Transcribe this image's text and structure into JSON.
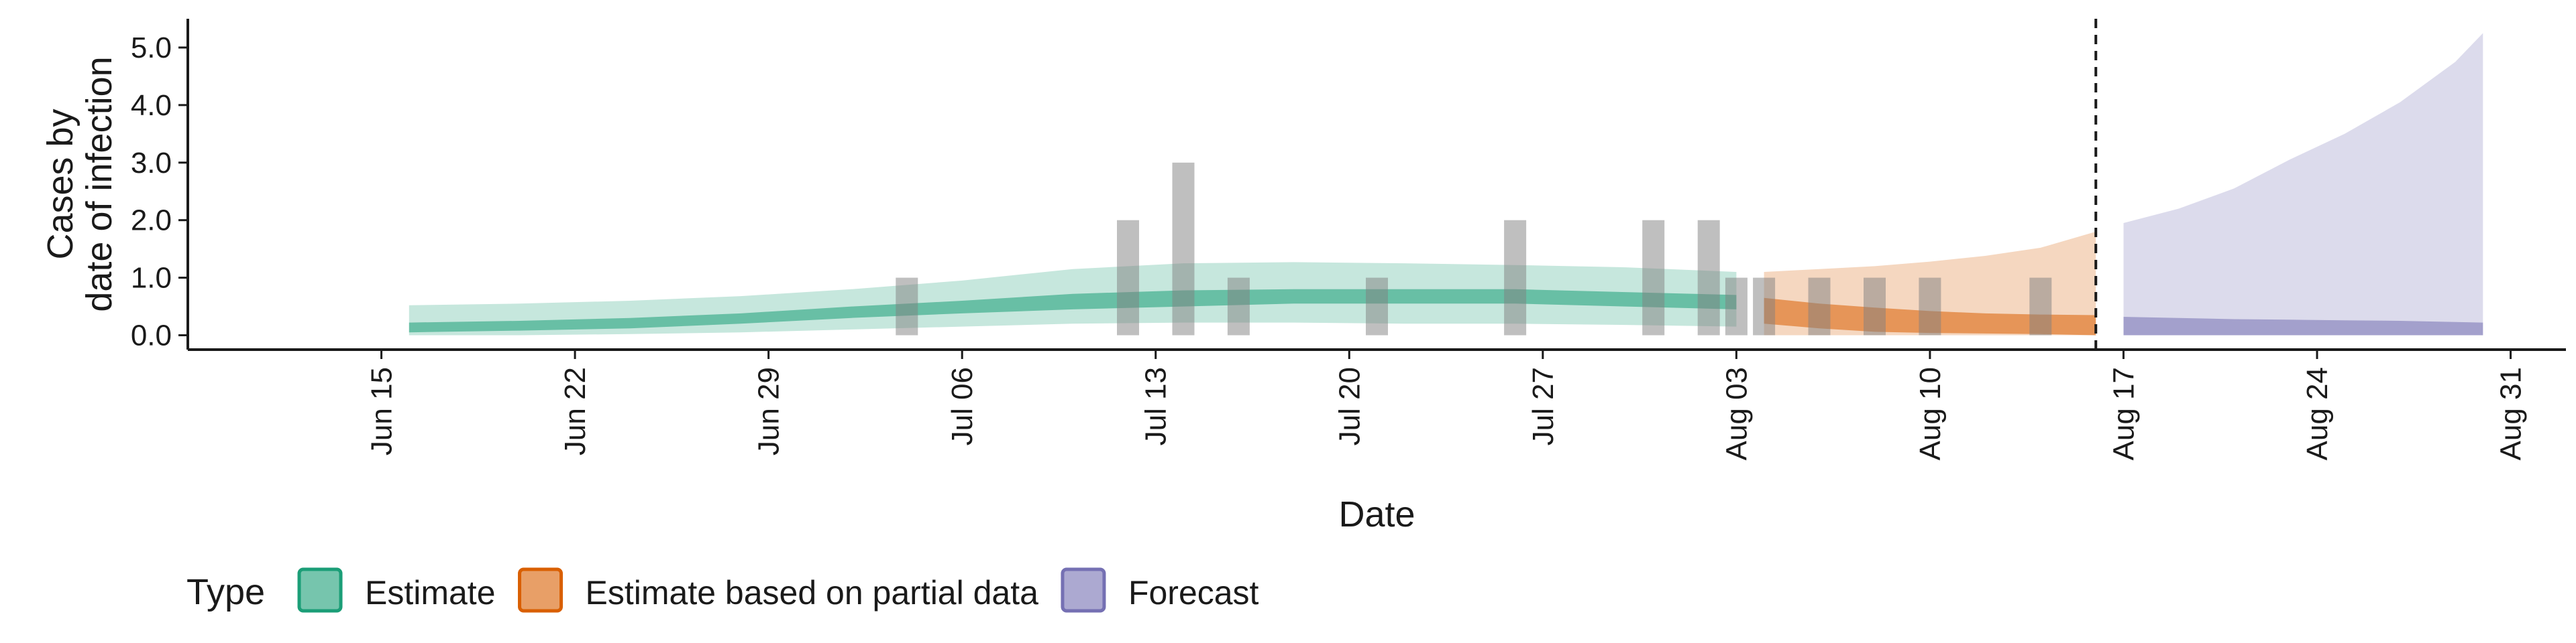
{
  "chart_data": {
    "type": "area",
    "xlabel": "Date",
    "ylabel_lines": [
      "Cases by",
      "date of infection"
    ],
    "ylim": [
      -0.25,
      5.5
    ],
    "y_ticks": [
      0.0,
      1.0,
      2.0,
      3.0,
      4.0,
      5.0
    ],
    "y_tick_labels": [
      "0.0",
      "1.0",
      "2.0",
      "3.0",
      "4.0",
      "5.0"
    ],
    "x_range": [
      "2020-06-08",
      "2020-09-02"
    ],
    "x_ticks": [
      "2020-06-15",
      "2020-06-22",
      "2020-06-29",
      "2020-07-06",
      "2020-07-13",
      "2020-07-20",
      "2020-07-27",
      "2020-08-03",
      "2020-08-10",
      "2020-08-17",
      "2020-08-24",
      "2020-08-31"
    ],
    "x_tick_labels": [
      "Jun 15",
      "Jun 22",
      "Jun 29",
      "Jul 06",
      "Jul 13",
      "Jul 20",
      "Jul 27",
      "Aug 03",
      "Aug 10",
      "Aug 17",
      "Aug 24",
      "Aug 31"
    ],
    "vline": "2020-08-16",
    "legend": {
      "title": "Type",
      "position": "bottom",
      "items": [
        {
          "label": "Estimate",
          "color": "#1b9e77"
        },
        {
          "label": "Estimate based on partial data",
          "color": "#d95f02"
        },
        {
          "label": "Forecast",
          "color": "#7570b3"
        }
      ]
    },
    "bars": {
      "color": "#7f7f7f",
      "dates": [
        "2020-07-04",
        "2020-07-12",
        "2020-07-14",
        "2020-07-16",
        "2020-07-21",
        "2020-07-26",
        "2020-07-31",
        "2020-08-02",
        "2020-08-03",
        "2020-08-04",
        "2020-08-06",
        "2020-08-08",
        "2020-08-10",
        "2020-08-14"
      ],
      "values": [
        1,
        2,
        3,
        1,
        1,
        2,
        2,
        2,
        1,
        1,
        1,
        1,
        1,
        1
      ]
    },
    "series": [
      {
        "type_label": "Estimate",
        "color": "#1b9e77",
        "dates": [
          "2020-06-16",
          "2020-06-20",
          "2020-06-24",
          "2020-06-28",
          "2020-07-02",
          "2020-07-06",
          "2020-07-10",
          "2020-07-14",
          "2020-07-18",
          "2020-07-22",
          "2020-07-26",
          "2020-07-30",
          "2020-08-03"
        ],
        "lower90": [
          0.0,
          0.0,
          0.02,
          0.05,
          0.1,
          0.15,
          0.2,
          0.22,
          0.22,
          0.2,
          0.2,
          0.18,
          0.15
        ],
        "upper90": [
          0.52,
          0.55,
          0.6,
          0.68,
          0.8,
          0.95,
          1.15,
          1.25,
          1.27,
          1.25,
          1.22,
          1.18,
          1.1
        ],
        "lower50": [
          0.05,
          0.08,
          0.12,
          0.2,
          0.3,
          0.38,
          0.45,
          0.5,
          0.55,
          0.55,
          0.55,
          0.5,
          0.45
        ],
        "upper50": [
          0.22,
          0.25,
          0.3,
          0.38,
          0.5,
          0.6,
          0.72,
          0.78,
          0.8,
          0.8,
          0.8,
          0.75,
          0.7
        ]
      },
      {
        "type_label": "Estimate based on partial data",
        "color": "#d95f02",
        "dates": [
          "2020-08-04",
          "2020-08-06",
          "2020-08-08",
          "2020-08-10",
          "2020-08-12",
          "2020-08-14",
          "2020-08-16"
        ],
        "lower90": [
          0.0,
          0.0,
          0.0,
          0.0,
          0.0,
          0.0,
          0.0
        ],
        "upper90": [
          1.1,
          1.15,
          1.2,
          1.28,
          1.38,
          1.52,
          1.8
        ],
        "lower50": [
          0.2,
          0.12,
          0.06,
          0.04,
          0.03,
          0.02,
          0.0
        ],
        "upper50": [
          0.65,
          0.55,
          0.48,
          0.42,
          0.38,
          0.36,
          0.35
        ]
      },
      {
        "type_label": "Forecast",
        "color": "#7570b3",
        "dates": [
          "2020-08-17",
          "2020-08-19",
          "2020-08-21",
          "2020-08-23",
          "2020-08-25",
          "2020-08-27",
          "2020-08-29",
          "2020-08-30"
        ],
        "lower90": [
          0.0,
          0.0,
          0.0,
          0.0,
          0.0,
          0.0,
          0.0,
          0.0
        ],
        "upper90": [
          1.95,
          2.2,
          2.55,
          3.05,
          3.5,
          4.05,
          4.75,
          5.25
        ],
        "lower50": [
          0.0,
          0.0,
          0.0,
          0.0,
          0.0,
          0.0,
          0.0,
          0.0
        ],
        "upper50": [
          0.32,
          0.3,
          0.28,
          0.27,
          0.26,
          0.25,
          0.23,
          0.22
        ]
      }
    ]
  }
}
